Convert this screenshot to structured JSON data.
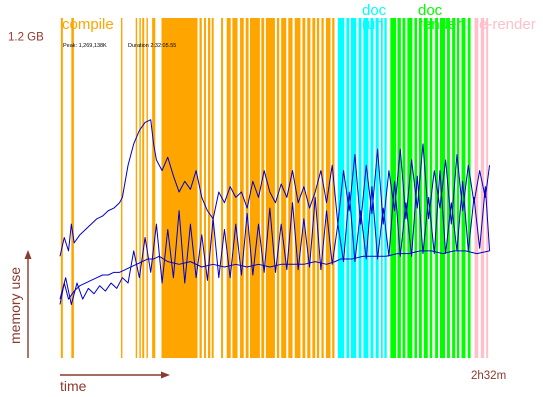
{
  "chart_data": {
    "type": "line",
    "title": "",
    "xlabel": "time",
    "ylabel": "memory use",
    "x_unit": "minutes",
    "x_range": [
      0,
      152
    ],
    "y_unit": "GB",
    "y_range": [
      0,
      1.27
    ],
    "y_tick": {
      "value": 1.2,
      "label": "1.2 GB"
    },
    "x_tick": {
      "value": 152,
      "label": "2h32m"
    },
    "stats": {
      "peak": "Peak: 1,269,138K",
      "duration": "Duration 2:32:05.55"
    },
    "colors": {
      "compile": "#ffa500",
      "doc_run": "#00ffff",
      "doc_render": "#00ff00",
      "re_render": "#ffc0cb",
      "series": "#0000cc",
      "axis": "#8b3a2f"
    },
    "phases": [
      {
        "name": "compile",
        "label": [
          "compile"
        ],
        "color": "#ffa500",
        "start": 0,
        "end": 98
      },
      {
        "name": "doc-run",
        "label": [
          "doc",
          "run"
        ],
        "color": "#00ffff",
        "start": 98,
        "end": 116
      },
      {
        "name": "doc-render",
        "label": [
          "doc",
          "render"
        ],
        "color": "#00ff00",
        "start": 116,
        "end": 146
      },
      {
        "name": "re-render",
        "label": [
          "re-render"
        ],
        "color": "#ffc0cb",
        "start": 146,
        "end": 152
      }
    ],
    "bands": [
      {
        "phase": "compile",
        "start": 0.3,
        "end": 1.0
      },
      {
        "phase": "compile",
        "start": 4.0,
        "end": 4.9
      },
      {
        "phase": "compile",
        "start": 21.5,
        "end": 22.0
      },
      {
        "phase": "compile",
        "start": 26.7,
        "end": 27.2
      },
      {
        "phase": "compile",
        "start": 28.0,
        "end": 28.5
      },
      {
        "phase": "compile",
        "start": 29.0,
        "end": 29.7
      },
      {
        "phase": "compile",
        "start": 30.5,
        "end": 31.0
      },
      {
        "phase": "compile",
        "start": 32.5,
        "end": 33.6
      },
      {
        "phase": "compile",
        "start": 35.8,
        "end": 48.5
      },
      {
        "phase": "compile",
        "start": 49.2,
        "end": 50.0
      },
      {
        "phase": "compile",
        "start": 50.8,
        "end": 51.5
      },
      {
        "phase": "compile",
        "start": 52.2,
        "end": 53.0
      },
      {
        "phase": "compile",
        "start": 53.5,
        "end": 54.2
      },
      {
        "phase": "compile",
        "start": 56.8,
        "end": 57.5
      },
      {
        "phase": "compile",
        "start": 58.8,
        "end": 60.2
      },
      {
        "phase": "compile",
        "start": 60.8,
        "end": 62.6
      },
      {
        "phase": "compile",
        "start": 63.5,
        "end": 64.8
      },
      {
        "phase": "compile",
        "start": 65.5,
        "end": 66.5
      },
      {
        "phase": "compile",
        "start": 67.0,
        "end": 70.5
      },
      {
        "phase": "compile",
        "start": 71.0,
        "end": 72.0
      },
      {
        "phase": "compile",
        "start": 72.6,
        "end": 75.8
      },
      {
        "phase": "compile",
        "start": 76.5,
        "end": 77.3
      },
      {
        "phase": "compile",
        "start": 78.0,
        "end": 79.8
      },
      {
        "phase": "compile",
        "start": 80.5,
        "end": 82.0
      },
      {
        "phase": "compile",
        "start": 82.8,
        "end": 84.8
      },
      {
        "phase": "compile",
        "start": 85.5,
        "end": 86.5
      },
      {
        "phase": "compile",
        "start": 87.2,
        "end": 88.3
      },
      {
        "phase": "compile",
        "start": 89.0,
        "end": 90.0
      },
      {
        "phase": "compile",
        "start": 90.6,
        "end": 91.4
      },
      {
        "phase": "compile",
        "start": 92.2,
        "end": 93.0
      },
      {
        "phase": "compile",
        "start": 93.8,
        "end": 95.4
      },
      {
        "phase": "compile",
        "start": 96.0,
        "end": 96.8
      },
      {
        "phase": "doc-run",
        "start": 98.0,
        "end": 100.3
      },
      {
        "phase": "doc-run",
        "start": 101.0,
        "end": 102.0
      },
      {
        "phase": "doc-run",
        "start": 102.6,
        "end": 104.5
      },
      {
        "phase": "doc-run",
        "start": 105.3,
        "end": 106.3
      },
      {
        "phase": "doc-run",
        "start": 107.0,
        "end": 108.8
      },
      {
        "phase": "doc-run",
        "start": 109.5,
        "end": 110.5
      },
      {
        "phase": "doc-run",
        "start": 111.3,
        "end": 112.4
      },
      {
        "phase": "doc-run",
        "start": 113.2,
        "end": 113.8
      },
      {
        "phase": "doc-run",
        "start": 114.4,
        "end": 115.2
      },
      {
        "phase": "doc-render",
        "start": 116.5,
        "end": 118.5
      },
      {
        "phase": "doc-render",
        "start": 119.0,
        "end": 120.2
      },
      {
        "phase": "doc-render",
        "start": 120.8,
        "end": 121.8
      },
      {
        "phase": "doc-render",
        "start": 122.5,
        "end": 124.3
      },
      {
        "phase": "doc-render",
        "start": 125.0,
        "end": 125.9
      },
      {
        "phase": "doc-render",
        "start": 126.6,
        "end": 127.6
      },
      {
        "phase": "doc-render",
        "start": 128.3,
        "end": 129.7
      },
      {
        "phase": "doc-render",
        "start": 130.4,
        "end": 131.3
      },
      {
        "phase": "doc-render",
        "start": 132.3,
        "end": 133.3
      },
      {
        "phase": "doc-render",
        "start": 134.0,
        "end": 135.8
      },
      {
        "phase": "doc-render",
        "start": 136.5,
        "end": 137.5
      },
      {
        "phase": "doc-render",
        "start": 138.3,
        "end": 139.4
      },
      {
        "phase": "doc-render",
        "start": 140.0,
        "end": 140.8
      },
      {
        "phase": "doc-render",
        "start": 141.6,
        "end": 143.0
      },
      {
        "phase": "doc-render",
        "start": 143.8,
        "end": 144.8
      },
      {
        "phase": "re-render",
        "start": 146.2,
        "end": 147.5
      },
      {
        "phase": "re-render",
        "start": 148.4,
        "end": 149.6
      },
      {
        "phase": "re-render",
        "start": 150.3,
        "end": 151.0
      }
    ],
    "series": [
      {
        "x": [
          0,
          1.5,
          3,
          4,
          5,
          7,
          9,
          11,
          13,
          15,
          17,
          19,
          21,
          22,
          24,
          26,
          28,
          30,
          32,
          33,
          34,
          36,
          38,
          40,
          42,
          44,
          46,
          48,
          50,
          52,
          54,
          56,
          58,
          60,
          62,
          64,
          66,
          68,
          70,
          72,
          74,
          76,
          78,
          80,
          82,
          84,
          86,
          88,
          90,
          92,
          94,
          96,
          98,
          100,
          102,
          104,
          106,
          108,
          110,
          112,
          114,
          116,
          118,
          120,
          122,
          124,
          126,
          128,
          130,
          132,
          134,
          136,
          138,
          140,
          142,
          144,
          146,
          148,
          150,
          151.5
        ],
        "y": [
          0.38,
          0.45,
          0.4,
          0.5,
          0.43,
          0.46,
          0.48,
          0.5,
          0.52,
          0.53,
          0.55,
          0.56,
          0.58,
          0.6,
          0.72,
          0.8,
          0.85,
          0.88,
          0.89,
          0.8,
          0.74,
          0.7,
          0.75,
          0.68,
          0.62,
          0.66,
          0.63,
          0.7,
          0.6,
          0.55,
          0.52,
          0.62,
          0.58,
          0.64,
          0.6,
          0.62,
          0.56,
          0.66,
          0.6,
          0.7,
          0.62,
          0.58,
          0.65,
          0.6,
          0.7,
          0.58,
          0.64,
          0.56,
          0.62,
          0.7,
          0.58,
          0.72,
          0.5,
          0.7,
          0.55,
          0.76,
          0.5,
          0.72,
          0.54,
          0.78,
          0.5,
          0.7,
          0.55,
          0.78,
          0.52,
          0.74,
          0.56,
          0.8,
          0.52,
          0.7,
          0.56,
          0.74,
          0.5,
          0.76,
          0.55,
          0.72,
          0.58,
          0.7,
          0.6,
          0.72
        ]
      },
      {
        "x": [
          0,
          1.5,
          3,
          5,
          7,
          9,
          11,
          13,
          15,
          17,
          19,
          21,
          23,
          25,
          27,
          29,
          31,
          33,
          35,
          38,
          42,
          46,
          50,
          54,
          58,
          62,
          66,
          70,
          74,
          78,
          82,
          86,
          90,
          94,
          97,
          99,
          103,
          107,
          111,
          115,
          119,
          123,
          127,
          131,
          135,
          139,
          143,
          147,
          151.5
        ],
        "y": [
          0.2,
          0.28,
          0.22,
          0.25,
          0.27,
          0.28,
          0.29,
          0.3,
          0.31,
          0.31,
          0.32,
          0.32,
          0.33,
          0.34,
          0.35,
          0.36,
          0.37,
          0.37,
          0.38,
          0.36,
          0.35,
          0.36,
          0.34,
          0.35,
          0.34,
          0.35,
          0.34,
          0.35,
          0.34,
          0.35,
          0.35,
          0.35,
          0.36,
          0.35,
          0.36,
          0.37,
          0.37,
          0.38,
          0.38,
          0.38,
          0.39,
          0.39,
          0.4,
          0.4,
          0.39,
          0.4,
          0.4,
          0.39,
          0.4
        ]
      },
      {
        "x": [
          0,
          2,
          4,
          6,
          8,
          10,
          12,
          14,
          16,
          18,
          20,
          22,
          24,
          26,
          28,
          30,
          32,
          34,
          36,
          38,
          40,
          42,
          44,
          46,
          48,
          50,
          52,
          54,
          56,
          58,
          60,
          62,
          64,
          66,
          68,
          70,
          72,
          74,
          76,
          78,
          80,
          82,
          84,
          86,
          88,
          90,
          92,
          94,
          96,
          98,
          100,
          102,
          104,
          106,
          108,
          110,
          112,
          114,
          116,
          118,
          120,
          122,
          124,
          126,
          128,
          130,
          132,
          134,
          136,
          138,
          140,
          142,
          144,
          146,
          148,
          150,
          151.5
        ],
        "y": [
          0.22,
          0.3,
          0.2,
          0.28,
          0.22,
          0.26,
          0.24,
          0.27,
          0.25,
          0.28,
          0.26,
          0.3,
          0.28,
          0.4,
          0.3,
          0.45,
          0.32,
          0.5,
          0.28,
          0.48,
          0.3,
          0.55,
          0.28,
          0.5,
          0.3,
          0.46,
          0.29,
          0.52,
          0.3,
          0.48,
          0.3,
          0.5,
          0.31,
          0.54,
          0.31,
          0.5,
          0.32,
          0.56,
          0.32,
          0.5,
          0.33,
          0.58,
          0.33,
          0.52,
          0.34,
          0.6,
          0.33,
          0.55,
          0.35,
          0.5,
          0.36,
          0.62,
          0.36,
          0.55,
          0.37,
          0.64,
          0.37,
          0.56,
          0.38,
          0.66,
          0.38,
          0.58,
          0.38,
          0.68,
          0.39,
          0.6,
          0.39,
          0.7,
          0.39,
          0.58,
          0.4,
          0.66,
          0.4,
          0.6,
          0.41,
          0.64,
          0.4
        ]
      }
    ]
  }
}
